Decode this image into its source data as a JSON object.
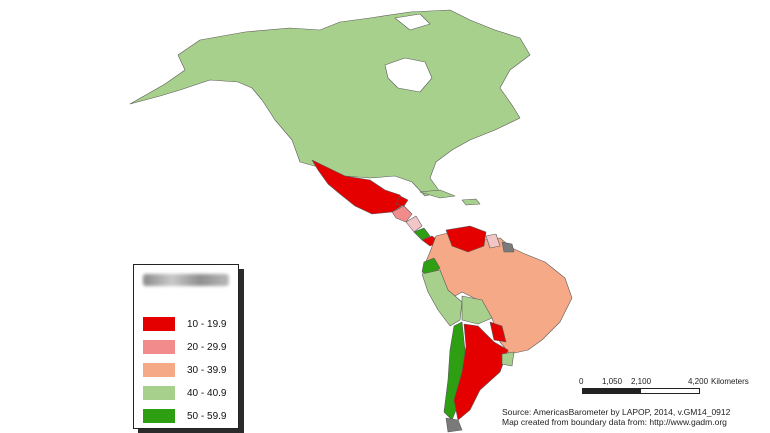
{
  "legend": {
    "items": [
      {
        "label": "10 - 19.9",
        "color": "#e50000"
      },
      {
        "label": "20 - 29.9",
        "color": "#f28b8b"
      },
      {
        "label": "30 - 39.9",
        "color": "#f5a987"
      },
      {
        "label": "40 - 40.9",
        "color": "#a8d08d"
      },
      {
        "label": "50 - 59.9",
        "color": "#2e9e12"
      }
    ]
  },
  "scale": {
    "labels": [
      "0",
      "1,050",
      "2,100",
      "4,200"
    ],
    "unit": "Kilometers"
  },
  "source": {
    "line1": "Source: AmericasBarometer by LAPOP, 2014, v.GM14_0912",
    "line2": "Map created from boundary data from: http://www.gadm.org"
  },
  "map_colors": {
    "no_data": "#7a7a7a",
    "light_pink": "#f2c6c6",
    "border": "#5a5a5a"
  }
}
